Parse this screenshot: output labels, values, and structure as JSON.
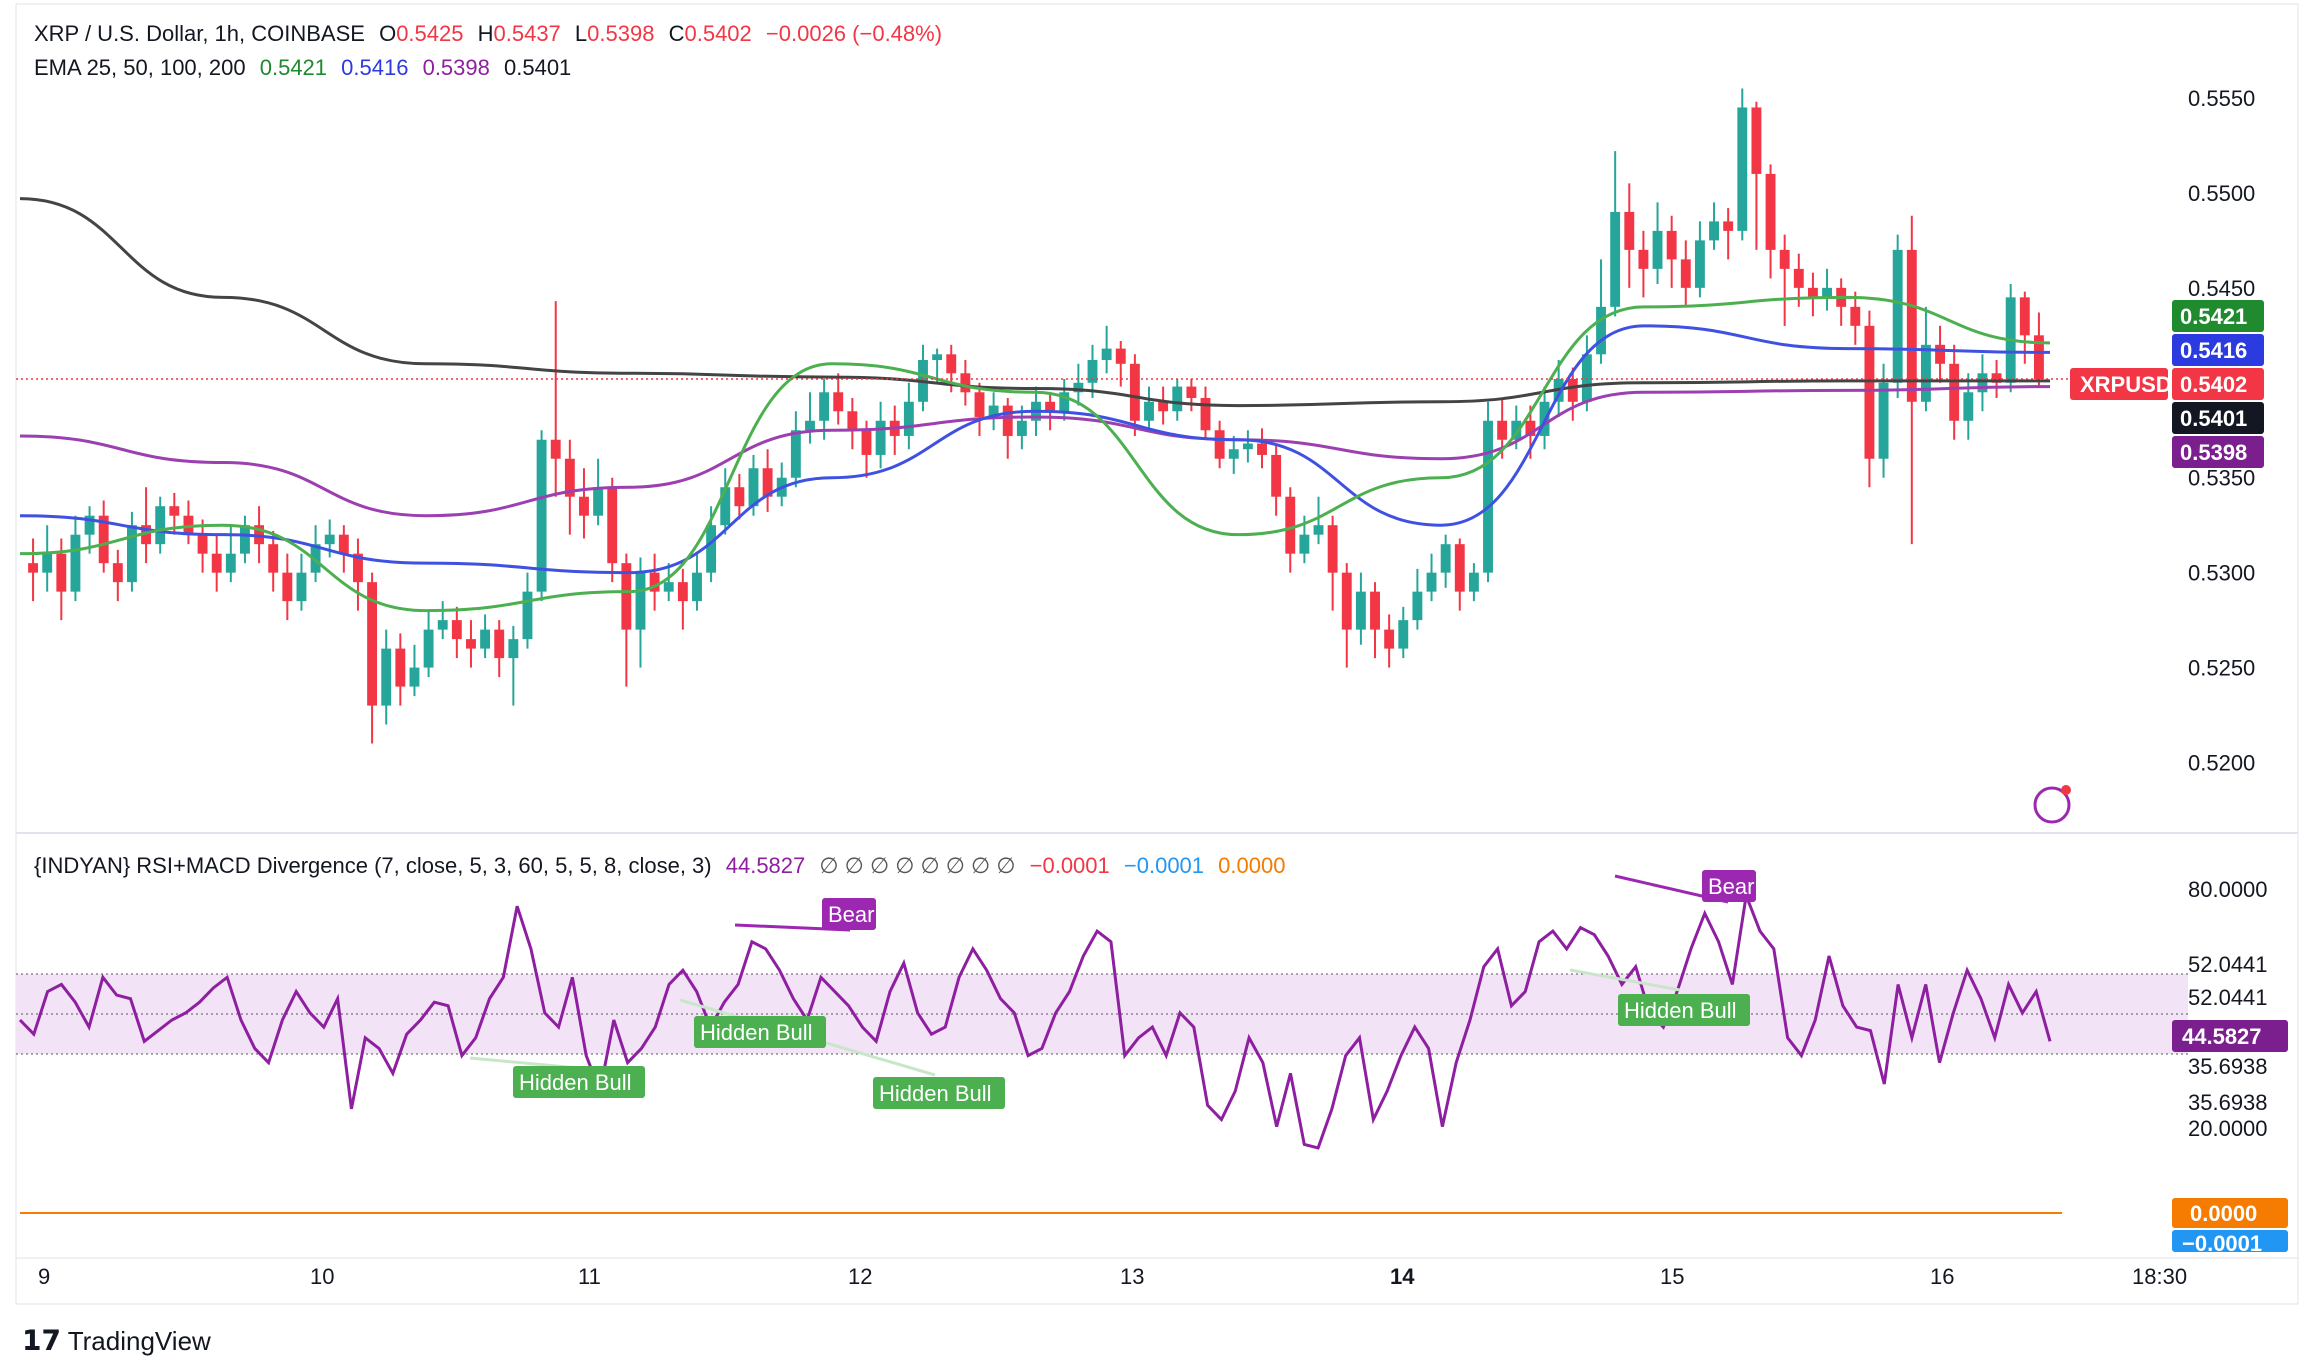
{
  "header": {
    "symbol": "XRP / U.S. Dollar, 1h, COINBASE",
    "open_label": "O",
    "open": "0.5425",
    "high_label": "H",
    "high": "0.5437",
    "low_label": "L",
    "low": "0.5398",
    "close_label": "C",
    "close": "0.5402",
    "change": "−0.0026 (−0.48%)"
  },
  "ema_legend": {
    "label": "EMA 25, 50, 100, 200",
    "v25": "0.5421",
    "v50": "0.5416",
    "v100": "0.5398",
    "v200": "0.5401"
  },
  "indicator_legend": {
    "label": "{INDYAN} RSI+MACD Divergence (7, close, 5, 3, 60, 5, 5, 8, close, 3)",
    "value": "44.5827",
    "empties": "∅ ∅ ∅ ∅ ∅ ∅ ∅ ∅",
    "v1": "−0.0001",
    "v2": "−0.0001",
    "v3": "0.0000"
  },
  "colors": {
    "up": "#26a69a",
    "down": "#f23645",
    "ema25": "#4caf50",
    "ema50": "#3f51e0",
    "ema100": "#9c3fb0",
    "ema200": "#444444",
    "rsi": "#8e1fa0",
    "band": "#f3e3f7",
    "bull": "#4caf50",
    "bear": "#9c27b0",
    "macd_orange": "#f57c00",
    "macd_blue": "#2196f3"
  },
  "price_axis": [
    "0.5550",
    "0.5500",
    "0.5450",
    "0.5400",
    "0.5350",
    "0.5300",
    "0.5250",
    "0.5200"
  ],
  "price_tags": [
    {
      "text": "0.5421",
      "color": "#1f8a2e",
      "price": 0.5421
    },
    {
      "text": "0.5416",
      "color": "#2b3be0",
      "price": 0.5416
    },
    {
      "text": "0.5402",
      "color": "#f23645",
      "price": 0.5402
    },
    {
      "text": "0.5401",
      "color": "#131722",
      "price": 0.5401
    },
    {
      "text": "0.5398",
      "color": "#7b1f8f",
      "price": 0.5398
    }
  ],
  "symbol_tag": "XRPUSD",
  "rsi_axis": [
    "80.0000",
    "52.0441",
    "52.0441",
    "35.6938",
    "35.6938",
    "20.0000"
  ],
  "rsi_tag": "44.5827",
  "macd_tags": [
    "0.0000",
    "−0.0001"
  ],
  "time_axis": [
    "9",
    "10",
    "11",
    "12",
    "13",
    "14",
    "15",
    "16",
    "18:30"
  ],
  "signals": [
    {
      "text": "Bear",
      "type": "bear"
    },
    {
      "text": "Bear",
      "type": "bear"
    },
    {
      "text": "Hidden Bull",
      "type": "bull"
    },
    {
      "text": "Hidden Bull",
      "type": "bull"
    },
    {
      "text": "Hidden Bull",
      "type": "bull"
    },
    {
      "text": "Hidden Bull",
      "type": "bull"
    }
  ],
  "brand": "TradingView",
  "chart_data": {
    "type": "candlestick",
    "candles": [
      [
        0.5305,
        0.53,
        0.5318,
        0.5285
      ],
      [
        0.53,
        0.531,
        0.5325,
        0.529
      ],
      [
        0.531,
        0.529,
        0.5318,
        0.5275
      ],
      [
        0.529,
        0.532,
        0.533,
        0.5285
      ],
      [
        0.532,
        0.533,
        0.5335,
        0.531
      ],
      [
        0.533,
        0.5305,
        0.5338,
        0.53
      ],
      [
        0.5305,
        0.5295,
        0.5312,
        0.5285
      ],
      [
        0.5295,
        0.5325,
        0.5332,
        0.529
      ],
      [
        0.5325,
        0.5315,
        0.5345,
        0.5305
      ],
      [
        0.5315,
        0.5335,
        0.534,
        0.531
      ],
      [
        0.5335,
        0.533,
        0.5342,
        0.532
      ],
      [
        0.533,
        0.532,
        0.5338,
        0.5315
      ],
      [
        0.532,
        0.531,
        0.5328,
        0.53
      ],
      [
        0.531,
        0.53,
        0.532,
        0.529
      ],
      [
        0.53,
        0.531,
        0.5325,
        0.5295
      ],
      [
        0.531,
        0.5325,
        0.533,
        0.5305
      ],
      [
        0.5325,
        0.5315,
        0.5335,
        0.5305
      ],
      [
        0.5315,
        0.53,
        0.5322,
        0.529
      ],
      [
        0.53,
        0.5285,
        0.531,
        0.5275
      ],
      [
        0.5285,
        0.53,
        0.531,
        0.528
      ],
      [
        0.53,
        0.5315,
        0.5325,
        0.5295
      ],
      [
        0.5315,
        0.532,
        0.5328,
        0.5308
      ],
      [
        0.532,
        0.531,
        0.5325,
        0.53
      ],
      [
        0.531,
        0.5295,
        0.5318,
        0.528
      ],
      [
        0.5295,
        0.523,
        0.53,
        0.521
      ],
      [
        0.523,
        0.526,
        0.527,
        0.522
      ],
      [
        0.526,
        0.524,
        0.5268,
        0.523
      ],
      [
        0.524,
        0.525,
        0.5262,
        0.5235
      ],
      [
        0.525,
        0.527,
        0.528,
        0.5245
      ],
      [
        0.527,
        0.5275,
        0.5285,
        0.5265
      ],
      [
        0.5275,
        0.5265,
        0.5282,
        0.5255
      ],
      [
        0.5265,
        0.526,
        0.5275,
        0.525
      ],
      [
        0.526,
        0.527,
        0.5278,
        0.5255
      ],
      [
        0.527,
        0.5255,
        0.5275,
        0.5245
      ],
      [
        0.5255,
        0.5265,
        0.5272,
        0.523
      ],
      [
        0.5265,
        0.529,
        0.53,
        0.526
      ],
      [
        0.529,
        0.537,
        0.5375,
        0.5285
      ],
      [
        0.537,
        0.536,
        0.5443,
        0.534
      ],
      [
        0.536,
        0.534,
        0.537,
        0.532
      ],
      [
        0.534,
        0.533,
        0.5355,
        0.5318
      ],
      [
        0.533,
        0.5345,
        0.536,
        0.5325
      ],
      [
        0.5345,
        0.5305,
        0.535,
        0.5295
      ],
      [
        0.5305,
        0.527,
        0.531,
        0.524
      ],
      [
        0.527,
        0.53,
        0.5308,
        0.525
      ],
      [
        0.53,
        0.529,
        0.531,
        0.528
      ],
      [
        0.529,
        0.5295,
        0.5305,
        0.5285
      ],
      [
        0.5295,
        0.5285,
        0.5302,
        0.527
      ],
      [
        0.5285,
        0.53,
        0.531,
        0.528
      ],
      [
        0.53,
        0.5325,
        0.5335,
        0.5295
      ],
      [
        0.5325,
        0.5345,
        0.5355,
        0.532
      ],
      [
        0.5345,
        0.5335,
        0.5352,
        0.5328
      ],
      [
        0.5335,
        0.5355,
        0.5362,
        0.533
      ],
      [
        0.5355,
        0.534,
        0.5365,
        0.5332
      ],
      [
        0.534,
        0.535,
        0.5358,
        0.5335
      ],
      [
        0.535,
        0.5375,
        0.5385,
        0.5345
      ],
      [
        0.5375,
        0.538,
        0.5395,
        0.5368
      ],
      [
        0.538,
        0.5395,
        0.5402,
        0.537
      ],
      [
        0.5395,
        0.5385,
        0.5405,
        0.5378
      ],
      [
        0.5385,
        0.5375,
        0.5392,
        0.5365
      ],
      [
        0.5375,
        0.5362,
        0.538,
        0.535
      ],
      [
        0.5362,
        0.538,
        0.539,
        0.5355
      ],
      [
        0.538,
        0.5372,
        0.5388,
        0.5362
      ],
      [
        0.5372,
        0.539,
        0.54,
        0.5365
      ],
      [
        0.539,
        0.5412,
        0.542,
        0.5385
      ],
      [
        0.5412,
        0.5415,
        0.5418,
        0.54
      ],
      [
        0.5415,
        0.5405,
        0.542,
        0.5395
      ],
      [
        0.5405,
        0.5395,
        0.5412,
        0.5388
      ],
      [
        0.5395,
        0.5382,
        0.54,
        0.5372
      ],
      [
        0.5382,
        0.5388,
        0.5395,
        0.5375
      ],
      [
        0.5388,
        0.5372,
        0.5392,
        0.536
      ],
      [
        0.5372,
        0.538,
        0.5388,
        0.5365
      ],
      [
        0.538,
        0.539,
        0.5398,
        0.5372
      ],
      [
        0.539,
        0.5385,
        0.5395,
        0.5375
      ],
      [
        0.5385,
        0.5395,
        0.5402,
        0.538
      ],
      [
        0.5395,
        0.54,
        0.541,
        0.5388
      ],
      [
        0.54,
        0.5412,
        0.542,
        0.5392
      ],
      [
        0.5412,
        0.5418,
        0.543,
        0.5405
      ],
      [
        0.5418,
        0.541,
        0.5422,
        0.5398
      ],
      [
        0.541,
        0.538,
        0.5415,
        0.5372
      ],
      [
        0.538,
        0.539,
        0.5398,
        0.5375
      ],
      [
        0.539,
        0.5385,
        0.5398,
        0.5378
      ],
      [
        0.5385,
        0.5398,
        0.5402,
        0.538
      ],
      [
        0.5398,
        0.5392,
        0.5402,
        0.5385
      ],
      [
        0.5392,
        0.5375,
        0.5398,
        0.537
      ],
      [
        0.5375,
        0.536,
        0.538,
        0.5355
      ],
      [
        0.536,
        0.5365,
        0.5372,
        0.5352
      ],
      [
        0.5365,
        0.5368,
        0.5375,
        0.5358
      ],
      [
        0.5368,
        0.5362,
        0.5376,
        0.5355
      ],
      [
        0.5362,
        0.534,
        0.5368,
        0.533
      ],
      [
        0.534,
        0.531,
        0.5345,
        0.53
      ],
      [
        0.531,
        0.532,
        0.533,
        0.5305
      ],
      [
        0.532,
        0.5325,
        0.534,
        0.5315
      ],
      [
        0.5325,
        0.53,
        0.533,
        0.528
      ],
      [
        0.53,
        0.527,
        0.5305,
        0.525
      ],
      [
        0.527,
        0.529,
        0.53,
        0.5262
      ],
      [
        0.529,
        0.527,
        0.5295,
        0.5255
      ],
      [
        0.527,
        0.526,
        0.5278,
        0.525
      ],
      [
        0.526,
        0.5275,
        0.5282,
        0.5255
      ],
      [
        0.5275,
        0.529,
        0.5302,
        0.527
      ],
      [
        0.529,
        0.53,
        0.531,
        0.5285
      ],
      [
        0.53,
        0.5315,
        0.532,
        0.5292
      ],
      [
        0.5315,
        0.529,
        0.5318,
        0.528
      ],
      [
        0.529,
        0.53,
        0.5305,
        0.5285
      ],
      [
        0.53,
        0.538,
        0.539,
        0.5295
      ],
      [
        0.538,
        0.537,
        0.5392,
        0.536
      ],
      [
        0.537,
        0.538,
        0.5388,
        0.5365
      ],
      [
        0.538,
        0.5372,
        0.5388,
        0.536
      ],
      [
        0.5372,
        0.539,
        0.5398,
        0.5365
      ],
      [
        0.539,
        0.5402,
        0.5412,
        0.5382
      ],
      [
        0.5402,
        0.539,
        0.5408,
        0.538
      ],
      [
        0.539,
        0.5415,
        0.5425,
        0.5385
      ],
      [
        0.5415,
        0.544,
        0.5465,
        0.541
      ],
      [
        0.544,
        0.549,
        0.5522,
        0.5435
      ],
      [
        0.549,
        0.547,
        0.5505,
        0.545
      ],
      [
        0.547,
        0.546,
        0.548,
        0.5445
      ],
      [
        0.546,
        0.548,
        0.5495,
        0.5452
      ],
      [
        0.548,
        0.5465,
        0.5488,
        0.545
      ],
      [
        0.5465,
        0.545,
        0.5475,
        0.544
      ],
      [
        0.545,
        0.5475,
        0.5485,
        0.5445
      ],
      [
        0.5475,
        0.5485,
        0.5495,
        0.547
      ],
      [
        0.5485,
        0.548,
        0.5492,
        0.5465
      ],
      [
        0.548,
        0.5545,
        0.5555,
        0.5475
      ],
      [
        0.5545,
        0.551,
        0.5548,
        0.547
      ],
      [
        0.551,
        0.547,
        0.5515,
        0.5455
      ],
      [
        0.547,
        0.546,
        0.5478,
        0.543
      ],
      [
        0.546,
        0.545,
        0.5468,
        0.544
      ],
      [
        0.545,
        0.5445,
        0.5458,
        0.5435
      ],
      [
        0.5445,
        0.545,
        0.546,
        0.5438
      ],
      [
        0.545,
        0.544,
        0.5455,
        0.543
      ],
      [
        0.544,
        0.543,
        0.5448,
        0.542
      ],
      [
        0.543,
        0.536,
        0.5438,
        0.5345
      ],
      [
        0.536,
        0.54,
        0.541,
        0.535
      ],
      [
        0.54,
        0.547,
        0.5478,
        0.5392
      ],
      [
        0.547,
        0.539,
        0.5488,
        0.5315
      ],
      [
        0.539,
        0.542,
        0.544,
        0.5385
      ],
      [
        0.542,
        0.541,
        0.543,
        0.54
      ],
      [
        0.541,
        0.538,
        0.542,
        0.537
      ],
      [
        0.538,
        0.5395,
        0.5405,
        0.537
      ],
      [
        0.5395,
        0.5405,
        0.5415,
        0.5385
      ],
      [
        0.5405,
        0.54,
        0.5412,
        0.5392
      ],
      [
        0.54,
        0.5445,
        0.5452,
        0.5395
      ],
      [
        0.5445,
        0.5425,
        0.5448,
        0.541
      ],
      [
        0.5425,
        0.5402,
        0.5437,
        0.5398
      ]
    ],
    "ema25": [
      0.531,
      0.5325,
      0.528,
      0.529,
      0.541,
      0.5395,
      0.532,
      0.535,
      0.544,
      0.5445,
      0.5421
    ],
    "ema50": [
      0.533,
      0.532,
      0.5305,
      0.53,
      0.535,
      0.5385,
      0.537,
      0.5325,
      0.543,
      0.5418,
      0.5416
    ],
    "ema100": [
      0.5372,
      0.5358,
      0.533,
      0.5345,
      0.5375,
      0.5382,
      0.537,
      0.536,
      0.5395,
      0.5396,
      0.5398
    ],
    "ema200": [
      0.5497,
      0.5445,
      0.541,
      0.5405,
      0.5403,
      0.5397,
      0.5388,
      0.539,
      0.54,
      0.5401,
      0.5401
    ],
    "rsi": [
      50,
      46,
      58,
      60,
      55,
      48,
      62,
      57,
      56,
      44,
      47,
      50,
      52,
      55,
      59,
      62,
      50,
      42,
      38,
      50,
      58,
      52,
      48,
      56,
      25,
      45,
      42,
      35,
      46,
      50,
      55,
      54,
      40,
      45,
      56,
      62,
      82,
      70,
      52,
      48,
      62,
      40,
      30,
      50,
      38,
      42,
      48,
      60,
      64,
      58,
      48,
      55,
      60,
      72,
      70,
      64,
      56,
      50,
      62,
      58,
      54,
      48,
      44,
      58,
      66,
      52,
      46,
      48,
      62,
      70,
      64,
      56,
      52,
      40,
      42,
      52,
      58,
      68,
      75,
      72,
      40,
      45,
      48,
      40,
      52,
      48,
      26,
      22,
      30,
      45,
      38,
      20,
      35,
      15,
      14,
      25,
      40,
      45,
      22,
      30,
      40,
      48,
      42,
      20,
      38,
      50,
      65,
      70,
      54,
      58,
      72,
      75,
      70,
      76,
      74,
      68,
      60,
      65,
      52,
      48,
      58,
      70,
      80,
      72,
      60,
      85,
      75,
      70,
      45,
      40,
      50,
      68,
      54,
      48,
      47,
      32,
      60,
      45,
      60,
      38,
      52,
      64,
      56,
      45,
      60,
      52,
      58,
      44
    ]
  }
}
